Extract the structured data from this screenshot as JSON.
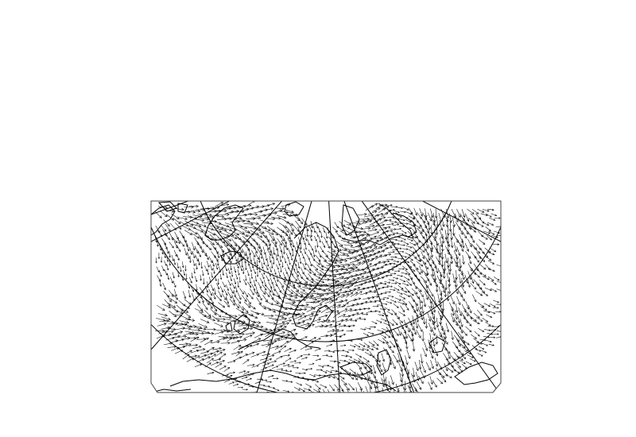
{
  "map": {
    "projection": "polar-stereographic-sector",
    "layers": [
      "coastlines",
      "graticule",
      "wind-vectors"
    ],
    "colors": {
      "background": "#ffffff",
      "frame": "#000000",
      "coastline": "#000000",
      "graticule": "#000000",
      "vectors": "#000000"
    }
  }
}
